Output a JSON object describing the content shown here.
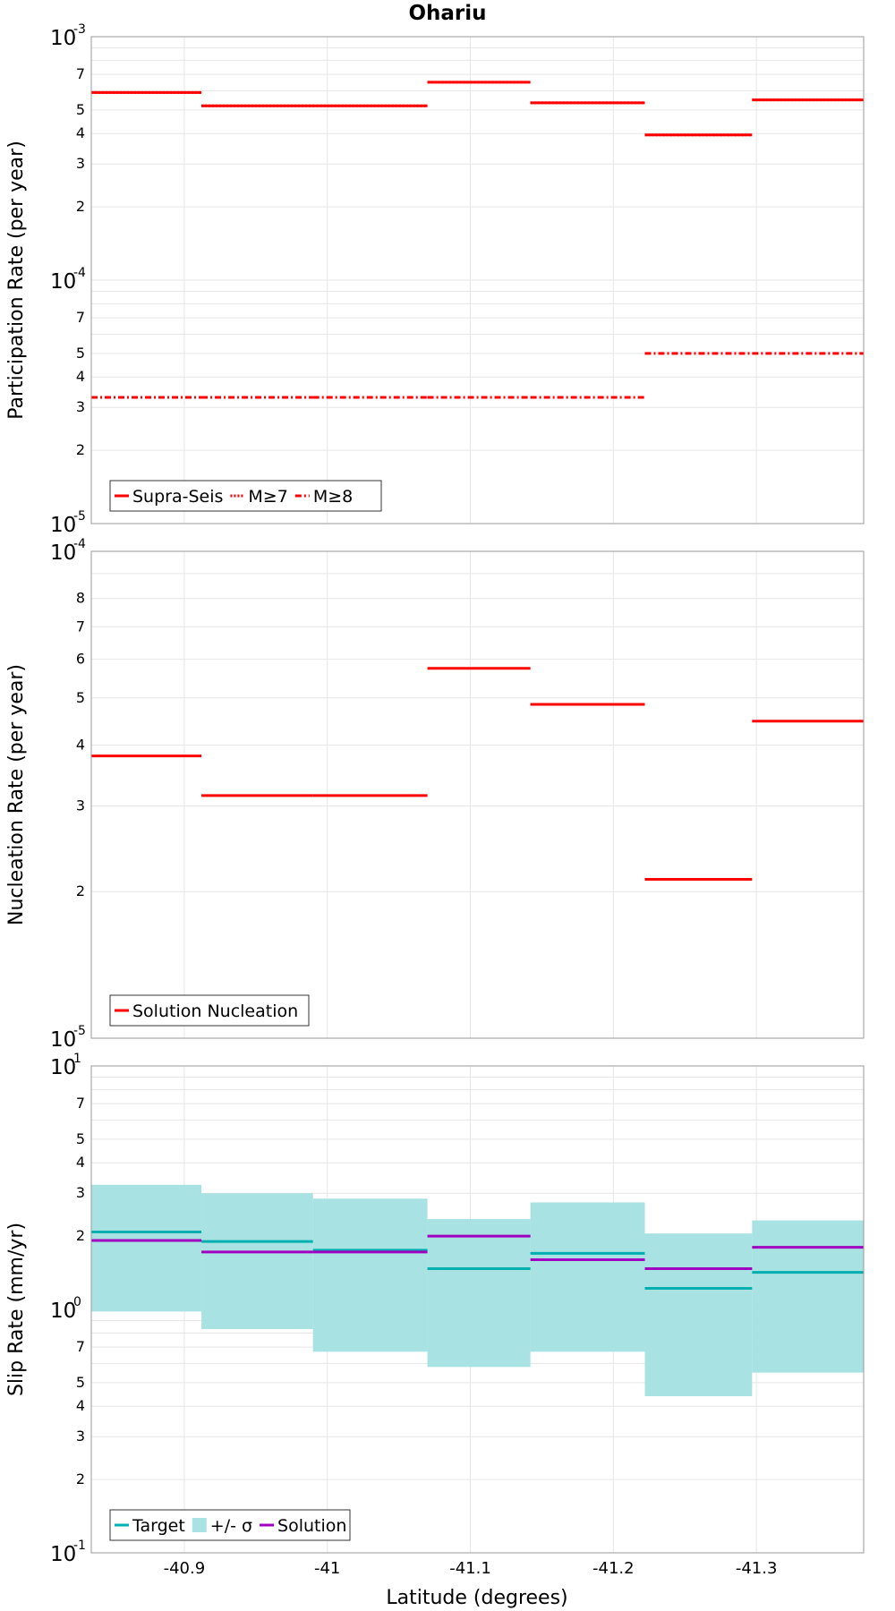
{
  "figure_title": "Ohariu",
  "xlabel": "Latitude (degrees)",
  "x_ticks": [
    "-40.9",
    "-41",
    "-41.1",
    "-41.2",
    "-41.3"
  ],
  "chart_data": [
    {
      "type": "line",
      "name": "participation",
      "title": "Ohariu",
      "xlabel": "Latitude (degrees)",
      "ylabel": "Participation Rate (per year)",
      "xlim": [
        -40.835,
        -41.375
      ],
      "ylim": [
        1e-05,
        0.001
      ],
      "yscale": "log",
      "grid": true,
      "legend_position": "bottom-left",
      "y_major_ticks": [
        {
          "base": "10",
          "exp": "-5",
          "value": 1e-05
        },
        {
          "base": "10",
          "exp": "-4",
          "value": 0.0001
        },
        {
          "base": "10",
          "exp": "-3",
          "value": 0.001
        }
      ],
      "y_minor_ticks": [
        {
          "label": "2",
          "value": 2e-05
        },
        {
          "label": "3",
          "value": 3e-05
        },
        {
          "label": "4",
          "value": 4e-05
        },
        {
          "label": "5",
          "value": 5e-05
        },
        {
          "label": "7",
          "value": 7e-05
        },
        {
          "label": "2",
          "value": 0.0002
        },
        {
          "label": "3",
          "value": 0.0003
        },
        {
          "label": "4",
          "value": 0.0004
        },
        {
          "label": "5",
          "value": 0.0005
        },
        {
          "label": "7",
          "value": 0.0007
        }
      ],
      "series": [
        {
          "name": "Supra-Seis",
          "color": "#ff0000",
          "style": "solid",
          "segments": [
            [
              -40.835,
              -40.912,
              0.00059
            ],
            [
              -40.912,
              -40.99,
              0.00052
            ],
            [
              -40.99,
              -41.07,
              0.00052
            ],
            [
              -41.07,
              -41.142,
              0.00065
            ],
            [
              -41.142,
              -41.222,
              0.000535
            ],
            [
              -41.222,
              -41.297,
              0.000395
            ],
            [
              -41.297,
              -41.375,
              0.00055
            ]
          ]
        },
        {
          "name": "M≥7",
          "color": "#ff0000",
          "style": "dotted",
          "segments": [
            [
              -40.835,
              -40.912,
              0.00059
            ],
            [
              -40.912,
              -40.99,
              0.00052
            ],
            [
              -40.99,
              -41.07,
              0.00052
            ],
            [
              -41.07,
              -41.142,
              0.00065
            ],
            [
              -41.142,
              -41.222,
              0.000535
            ],
            [
              -41.222,
              -41.297,
              0.000395
            ],
            [
              -41.297,
              -41.375,
              0.00055
            ]
          ]
        },
        {
          "name": "M≥8",
          "color": "#ff0000",
          "style": "dashdot",
          "segments": [
            [
              -40.835,
              -40.912,
              3.3e-05
            ],
            [
              -40.912,
              -40.99,
              3.3e-05
            ],
            [
              -40.99,
              -41.07,
              3.3e-05
            ],
            [
              -41.07,
              -41.142,
              3.3e-05
            ],
            [
              -41.142,
              -41.222,
              3.3e-05
            ],
            [
              -41.222,
              -41.297,
              5e-05
            ],
            [
              -41.297,
              -41.375,
              5e-05
            ]
          ]
        }
      ]
    },
    {
      "type": "line",
      "name": "nucleation",
      "xlabel": "Latitude (degrees)",
      "ylabel": "Nucleation Rate (per year)",
      "xlim": [
        -40.835,
        -41.375
      ],
      "ylim": [
        1e-05,
        0.0001
      ],
      "yscale": "log",
      "grid": true,
      "legend_position": "bottom-left",
      "y_major_ticks": [
        {
          "base": "10",
          "exp": "-5",
          "value": 1e-05
        },
        {
          "base": "10",
          "exp": "-4",
          "value": 0.0001
        }
      ],
      "y_minor_ticks": [
        {
          "label": "2",
          "value": 2e-05
        },
        {
          "label": "3",
          "value": 3e-05
        },
        {
          "label": "4",
          "value": 4e-05
        },
        {
          "label": "5",
          "value": 5e-05
        },
        {
          "label": "6",
          "value": 6e-05
        },
        {
          "label": "7",
          "value": 7e-05
        },
        {
          "label": "8",
          "value": 8e-05
        }
      ],
      "series": [
        {
          "name": "Solution Nucleation",
          "color": "#ff0000",
          "style": "solid",
          "segments": [
            [
              -40.835,
              -40.912,
              3.8e-05
            ],
            [
              -40.912,
              -40.99,
              3.15e-05
            ],
            [
              -40.99,
              -41.07,
              3.15e-05
            ],
            [
              -41.07,
              -41.142,
              5.75e-05
            ],
            [
              -41.142,
              -41.222,
              4.85e-05
            ],
            [
              -41.222,
              -41.297,
              2.12e-05
            ],
            [
              -41.297,
              -41.375,
              4.48e-05
            ]
          ]
        }
      ]
    },
    {
      "type": "line",
      "name": "slip",
      "xlabel": "Latitude (degrees)",
      "ylabel": "Slip Rate (mm/yr)",
      "xlim": [
        -40.835,
        -41.375
      ],
      "ylim": [
        0.1,
        10
      ],
      "yscale": "log",
      "grid": true,
      "legend_position": "bottom-left",
      "y_major_ticks": [
        {
          "base": "10",
          "exp": "-1",
          "value": 0.1
        },
        {
          "base": "10",
          "exp": "0",
          "value": 1
        },
        {
          "base": "10",
          "exp": "1",
          "value": 10
        }
      ],
      "y_minor_ticks": [
        {
          "label": "2",
          "value": 0.2
        },
        {
          "label": "3",
          "value": 0.3
        },
        {
          "label": "4",
          "value": 0.4
        },
        {
          "label": "5",
          "value": 0.5
        },
        {
          "label": "7",
          "value": 0.7
        },
        {
          "label": "2",
          "value": 2
        },
        {
          "label": "3",
          "value": 3
        },
        {
          "label": "4",
          "value": 4
        },
        {
          "label": "5",
          "value": 5
        },
        {
          "label": "7",
          "value": 7
        }
      ],
      "band": {
        "name": "+/- σ",
        "color": "#a8e2e2",
        "segments": [
          [
            -40.835,
            -40.912,
            0.98,
            3.25
          ],
          [
            -40.912,
            -40.99,
            0.83,
            3.0
          ],
          [
            -40.99,
            -41.07,
            0.67,
            2.85
          ],
          [
            -41.07,
            -41.142,
            0.58,
            2.35
          ],
          [
            -41.142,
            -41.222,
            0.67,
            2.75
          ],
          [
            -41.222,
            -41.297,
            0.44,
            2.05
          ],
          [
            -41.297,
            -41.375,
            0.55,
            2.32
          ]
        ]
      },
      "series": [
        {
          "name": "Target",
          "color": "#00b0b0",
          "style": "solid",
          "segments": [
            [
              -40.835,
              -40.912,
              2.08
            ],
            [
              -40.912,
              -40.99,
              1.9
            ],
            [
              -40.99,
              -41.07,
              1.75
            ],
            [
              -41.07,
              -41.142,
              1.47
            ],
            [
              -41.142,
              -41.222,
              1.7
            ],
            [
              -41.222,
              -41.297,
              1.22
            ],
            [
              -41.297,
              -41.375,
              1.42
            ]
          ]
        },
        {
          "name": "Solution",
          "color": "#a000c0",
          "style": "solid",
          "segments": [
            [
              -40.835,
              -40.912,
              1.92
            ],
            [
              -40.912,
              -40.99,
              1.72
            ],
            [
              -40.99,
              -41.07,
              1.72
            ],
            [
              -41.07,
              -41.142,
              2.0
            ],
            [
              -41.142,
              -41.222,
              1.6
            ],
            [
              -41.222,
              -41.297,
              1.47
            ],
            [
              -41.297,
              -41.375,
              1.8
            ]
          ]
        }
      ]
    }
  ]
}
